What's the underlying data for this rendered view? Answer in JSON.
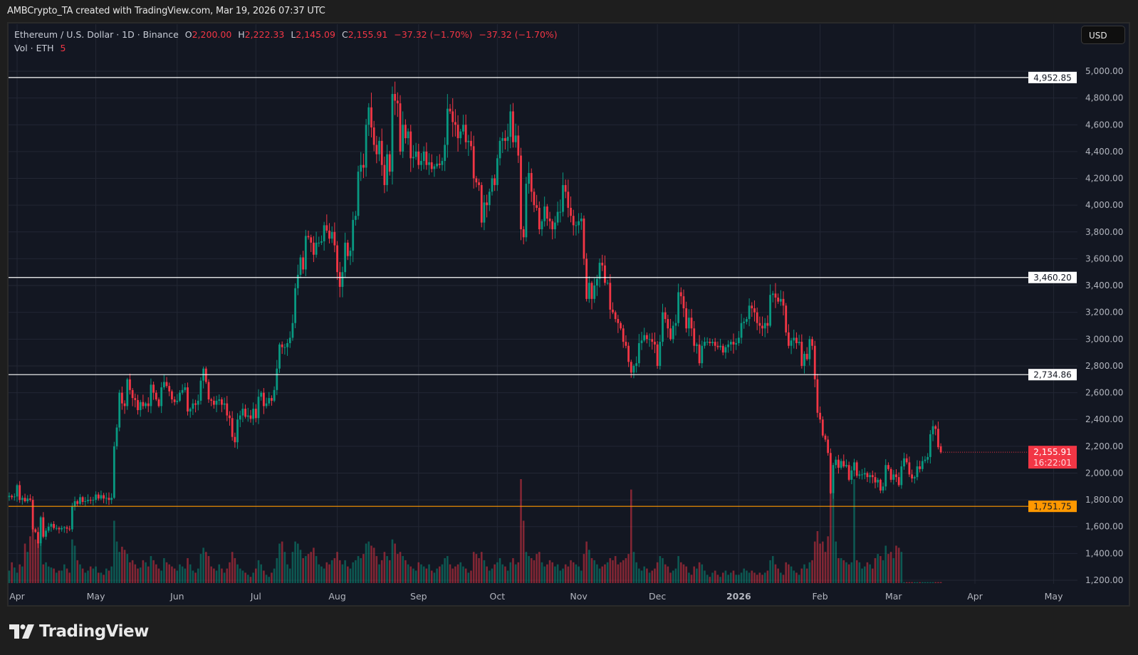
{
  "header": {
    "attribution": "AMBCrypto_TA created with TradingView.com, Mar 19, 2026 07:37 UTC"
  },
  "legend": {
    "symbol": "Ethereum / U.S. Dollar · 1D · Binance",
    "o_label": "O",
    "o": "2,200.00",
    "h_label": "H",
    "h": "2,222.33",
    "l_label": "L",
    "l": "2,145.09",
    "c_label": "C",
    "c": "2,155.91",
    "change": "−37.32 (−1.70%)",
    "change2": "−37.32 (−1.70%)",
    "vol_label": "Vol · ETH",
    "vol": "5"
  },
  "currency_button": "USD",
  "brand": "TradingView",
  "colors": {
    "up": "#089981",
    "down": "#f23645",
    "level": "#ffffff",
    "support": "#ff9800",
    "background": "#131722",
    "grid": "#232734"
  },
  "chart_data": {
    "type": "candlestick",
    "title": "Ethereum / U.S. Dollar · 1D · Binance",
    "x_start": "2025-03-29",
    "interval": "1D",
    "ylim": [
      1200,
      5000
    ],
    "y_ticks": [
      1200,
      1400,
      1600,
      1800,
      2000,
      2200,
      2400,
      2600,
      2800,
      3000,
      3200,
      3400,
      3600,
      3800,
      4000,
      4200,
      4400,
      4600,
      4800,
      5000
    ],
    "y_tick_labels": [
      "1,200.00",
      "1,400.00",
      "1,600.00",
      "1,800.00",
      "2,000.00",
      "2,200.00",
      "2,400.00",
      "2,600.00",
      "2,800.00",
      "3,000.00",
      "3,200.00",
      "3,400.00",
      "3,600.00",
      "3,800.00",
      "4,000.00",
      "4,200.00",
      "4,400.00",
      "4,600.00",
      "4,800.00",
      "5,000.00"
    ],
    "x_ticks": [
      {
        "date": "2025-04-01",
        "label": "Apr"
      },
      {
        "date": "2025-05-01",
        "label": "May"
      },
      {
        "date": "2025-06-01",
        "label": "Jun"
      },
      {
        "date": "2025-07-01",
        "label": "Jul"
      },
      {
        "date": "2025-08-01",
        "label": "Aug"
      },
      {
        "date": "2025-09-01",
        "label": "Sep"
      },
      {
        "date": "2025-10-01",
        "label": "Oct"
      },
      {
        "date": "2025-11-01",
        "label": "Nov"
      },
      {
        "date": "2025-12-01",
        "label": "Dec"
      },
      {
        "date": "2026-01-01",
        "label": "2026"
      },
      {
        "date": "2026-02-01",
        "label": "Feb"
      },
      {
        "date": "2026-03-01",
        "label": "Mar"
      },
      {
        "date": "2026-04-01",
        "label": "Apr"
      },
      {
        "date": "2026-05-01",
        "label": "May"
      }
    ],
    "close": [
      1830,
      1820,
      1825,
      1910,
      1800,
      1815,
      1790,
      1810,
      1800,
      1580,
      1560,
      1475,
      1670,
      1525,
      1570,
      1600,
      1620,
      1590,
      1590,
      1580,
      1590,
      1595,
      1585,
      1580,
      1750,
      1790,
      1770,
      1820,
      1785,
      1790,
      1800,
      1795,
      1800,
      1840,
      1810,
      1835,
      1810,
      1815,
      1800,
      1815,
      2200,
      2340,
      2600,
      2520,
      2500,
      2700,
      2620,
      2560,
      2545,
      2470,
      2530,
      2500,
      2520,
      2500,
      2660,
      2600,
      2550,
      2500,
      2640,
      2680,
      2650,
      2610,
      2550,
      2530,
      2540,
      2600,
      2620,
      2640,
      2460,
      2480,
      2520,
      2510,
      2540,
      2690,
      2780,
      2680,
      2550,
      2540,
      2510,
      2540,
      2550,
      2510,
      2520,
      2430,
      2410,
      2270,
      2230,
      2400,
      2430,
      2480,
      2420,
      2430,
      2405,
      2480,
      2410,
      2570,
      2600,
      2500,
      2520,
      2560,
      2540,
      2620,
      2780,
      2960,
      2940,
      2940,
      2970,
      3010,
      3120,
      3380,
      3480,
      3610,
      3520,
      3770,
      3760,
      3720,
      3630,
      3720,
      3720,
      3730,
      3850,
      3810,
      3750,
      3800,
      3700,
      3500,
      3390,
      3500,
      3720,
      3620,
      3660,
      3890,
      3920,
      4250,
      4300,
      4280,
      4600,
      4730,
      4580,
      4450,
      4380,
      4480,
      4300,
      4150,
      4380,
      4250,
      4830,
      4780,
      4760,
      4400,
      4600,
      4500,
      4550,
      4350,
      4360,
      4400,
      4300,
      4330,
      4400,
      4300,
      4320,
      4270,
      4290,
      4310,
      4300,
      4330,
      4450,
      4720,
      4700,
      4620,
      4600,
      4500,
      4550,
      4600,
      4470,
      4480,
      4440,
      4200,
      4170,
      4150,
      3870,
      4020,
      4000,
      4100,
      4200,
      4150,
      4350,
      4480,
      4500,
      4480,
      4510,
      4700,
      4470,
      4520,
      4370,
      3820,
      3760,
      4160,
      4240,
      4100,
      4000,
      3980,
      3820,
      3880,
      3990,
      3900,
      3880,
      3820,
      3870,
      3950,
      3950,
      4150,
      4100,
      3980,
      3920,
      3850,
      3850,
      3880,
      3900,
      3600,
      3300,
      3420,
      3300,
      3400,
      3450,
      3570,
      3550,
      3420,
      3420,
      3220,
      3200,
      3150,
      3120,
      3080,
      2980,
      2950,
      2830,
      2750,
      2800,
      2820,
      2970,
      2990,
      3030,
      3000,
      3000,
      2980,
      2960,
      2800,
      2980,
      3200,
      3150,
      3080,
      3000,
      3100,
      3120,
      3350,
      3320,
      3230,
      3080,
      3160,
      3080,
      2950,
      2960,
      2820,
      2950,
      2980,
      2980,
      2970,
      2980,
      2950,
      2940,
      2950,
      2900,
      2940,
      2960,
      2980,
      2960,
      2970,
      3010,
      3120,
      3130,
      3150,
      3250,
      3230,
      3200,
      3120,
      3100,
      3080,
      3120,
      3100,
      3330,
      3340,
      3310,
      3280,
      3300,
      3250,
      3050,
      2950,
      2990,
      3010,
      2970,
      2980,
      2800,
      2890,
      2850,
      3000,
      2950,
      2700,
      2450,
      2400,
      2280,
      2250,
      2150,
      1850,
      2060,
      2100,
      2040,
      2090,
      2050,
      2060,
      1950,
      2020,
      2080,
      1980,
      1990,
      1990,
      2000,
      1970,
      1985,
      1970,
      1930,
      1950,
      1870,
      1900,
      2060,
      2030,
      1950,
      1990,
      1970,
      1910,
      2050,
      2110,
      2080,
      1990,
      1960,
      1970,
      2050,
      2030,
      2090,
      2100,
      2120,
      2290,
      2350,
      2330,
      2193.23,
      2155.91
    ],
    "last_candle": {
      "open": 2200.0,
      "high": 2222.33,
      "low": 2145.09,
      "close": 2155.91
    },
    "volume": [
      12,
      20,
      15,
      10,
      18,
      16,
      38,
      30,
      45,
      60,
      42,
      40,
      38,
      18,
      20,
      16,
      15,
      14,
      10,
      12,
      12,
      18,
      14,
      10,
      42,
      36,
      22,
      18,
      14,
      10,
      12,
      16,
      14,
      16,
      10,
      10,
      8,
      14,
      12,
      16,
      60,
      40,
      30,
      35,
      32,
      28,
      20,
      22,
      18,
      14,
      15,
      22,
      20,
      16,
      26,
      22,
      18,
      14,
      12,
      24,
      20,
      18,
      16,
      14,
      12,
      18,
      16,
      14,
      24,
      18,
      12,
      10,
      14,
      28,
      34,
      30,
      26,
      16,
      14,
      12,
      18,
      14,
      10,
      14,
      20,
      30,
      24,
      18,
      14,
      12,
      10,
      8,
      6,
      10,
      14,
      22,
      18,
      12,
      8,
      6,
      10,
      14,
      24,
      38,
      40,
      30,
      18,
      14,
      30,
      40,
      38,
      32,
      24,
      26,
      28,
      30,
      34,
      26,
      18,
      16,
      14,
      20,
      18,
      22,
      24,
      30,
      22,
      18,
      22,
      16,
      14,
      20,
      22,
      26,
      24,
      28,
      38,
      40,
      36,
      34,
      26,
      18,
      22,
      30,
      26,
      22,
      42,
      38,
      28,
      30,
      26,
      22,
      18,
      16,
      14,
      12,
      20,
      18,
      16,
      14,
      18,
      12,
      10,
      14,
      16,
      18,
      24,
      26,
      18,
      14,
      16,
      18,
      20,
      16,
      14,
      10,
      12,
      30,
      28,
      24,
      30,
      22,
      16,
      12,
      14,
      18,
      20,
      24,
      18,
      16,
      12,
      20,
      24,
      18,
      20,
      100,
      60,
      30,
      26,
      24,
      22,
      28,
      30,
      20,
      16,
      18,
      22,
      20,
      16,
      18,
      12,
      14,
      18,
      16,
      22,
      20,
      18,
      16,
      12,
      28,
      40,
      32,
      24,
      22,
      18,
      14,
      16,
      18,
      20,
      24,
      22,
      26,
      18,
      20,
      22,
      24,
      28,
      90,
      30,
      20,
      14,
      12,
      16,
      14,
      10,
      12,
      14,
      20,
      26,
      24,
      18,
      16,
      10,
      12,
      14,
      26,
      20,
      18,
      16,
      10,
      8,
      16,
      14,
      20,
      18,
      12,
      8,
      6,
      10,
      12,
      8,
      6,
      10,
      12,
      8,
      10,
      12,
      8,
      8,
      10,
      14,
      12,
      10,
      12,
      10,
      8,
      10,
      8,
      10,
      12,
      22,
      26,
      18,
      14,
      10,
      8,
      20,
      18,
      16,
      12,
      10,
      8,
      14,
      18,
      14,
      20,
      22,
      40,
      50,
      38,
      40,
      30,
      45,
      90,
      100,
      40,
      24,
      24,
      22,
      20,
      18,
      20,
      100,
      22,
      20,
      14,
      16,
      20,
      18,
      14,
      24,
      28,
      26,
      22,
      36,
      28,
      30,
      24,
      36,
      34,
      30,
      1,
      1,
      1,
      1,
      1,
      1,
      1,
      1,
      1,
      1,
      1,
      1,
      1,
      1,
      1
    ],
    "levels": [
      {
        "price": 4952.85,
        "label": "4,952.85",
        "color": "#ffffff"
      },
      {
        "price": 3460.2,
        "label": "3,460.20",
        "color": "#ffffff"
      },
      {
        "price": 2734.86,
        "label": "2,734.86",
        "color": "#ffffff"
      },
      {
        "price": 1751.75,
        "label": "1,751.75",
        "color": "#ff9800"
      }
    ],
    "last_price": {
      "price": 2155.91,
      "label": "2,155.91",
      "countdown": "16:22:01"
    }
  }
}
